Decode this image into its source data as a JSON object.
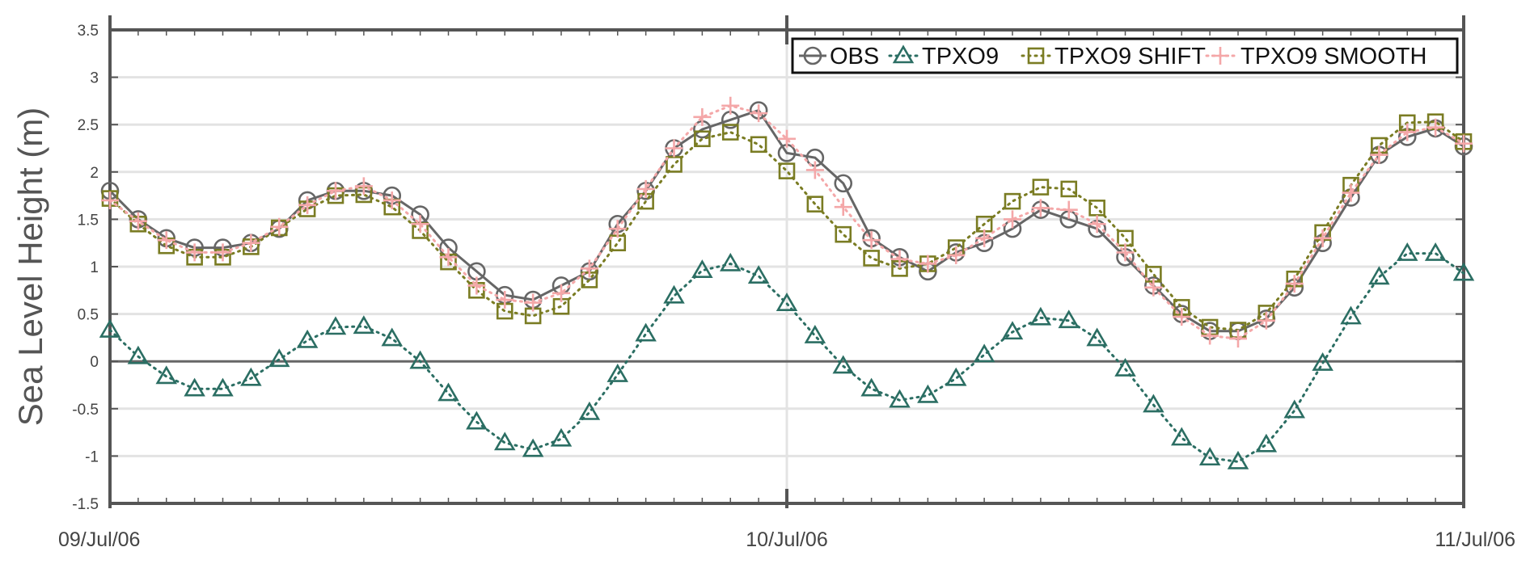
{
  "chart_data": {
    "type": "line",
    "ylabel": "Sea Level Height (m)",
    "xlabel": "",
    "ylim": [
      -1.5,
      3.5
    ],
    "yticks": [
      -1.5,
      -1,
      -0.5,
      0,
      0.5,
      1,
      1.5,
      2,
      2.5,
      3,
      3.5
    ],
    "ytick_labels": [
      "-1.5",
      "-1",
      "-0.5",
      "0",
      "0.5",
      "1",
      "1.5",
      "2",
      "2.5",
      "3",
      "3.5"
    ],
    "xlim": [
      "2006-07-09 00:00",
      "2006-07-11 00:00"
    ],
    "xticks": [
      "2006-07-09 00:00",
      "2006-07-10 00:00",
      "2006-07-11 00:00"
    ],
    "xtick_labels": [
      "09/Jul/06",
      "10/Jul/06",
      "11/Jul/06"
    ],
    "sample_interval_minutes": 60,
    "grid": "horizontal",
    "zero_line": true,
    "legend_position": "top-right",
    "series": [
      {
        "name": "OBS",
        "color": "#666666",
        "marker": "circle",
        "line_style": "solid",
        "values": [
          1.8,
          1.5,
          1.3,
          1.2,
          1.2,
          1.25,
          1.4,
          1.7,
          1.8,
          1.8,
          1.75,
          1.55,
          1.2,
          0.95,
          0.7,
          0.65,
          0.8,
          0.95,
          1.45,
          1.8,
          2.25,
          2.45,
          2.55,
          2.65,
          2.2,
          2.15,
          1.88,
          1.3,
          1.1,
          0.95,
          1.15,
          1.25,
          1.4,
          1.6,
          1.5,
          1.4,
          1.1,
          0.8,
          0.5,
          0.32,
          0.32,
          0.45,
          0.78,
          1.25,
          1.73,
          2.18,
          2.37,
          2.46,
          2.27
        ]
      },
      {
        "name": "TPXO9",
        "color": "#2b6e63",
        "marker": "triangle",
        "line_style": "dotted",
        "values": [
          0.33,
          0.05,
          -0.16,
          -0.29,
          -0.29,
          -0.18,
          0.02,
          0.22,
          0.36,
          0.37,
          0.24,
          0.0,
          -0.34,
          -0.64,
          -0.86,
          -0.93,
          -0.82,
          -0.54,
          -0.14,
          0.29,
          0.69,
          0.96,
          1.03,
          0.9,
          0.61,
          0.27,
          -0.05,
          -0.29,
          -0.41,
          -0.36,
          -0.18,
          0.07,
          0.31,
          0.46,
          0.43,
          0.24,
          -0.08,
          -0.46,
          -0.81,
          -1.02,
          -1.06,
          -0.88,
          -0.52,
          -0.02,
          0.47,
          0.89,
          1.14,
          1.14,
          0.93
        ]
      },
      {
        "name": "TPXO9 SHIFT",
        "color": "#7a7c23",
        "marker": "square",
        "line_style": "dotted",
        "values": [
          1.72,
          1.45,
          1.22,
          1.1,
          1.1,
          1.21,
          1.41,
          1.61,
          1.75,
          1.76,
          1.63,
          1.38,
          1.05,
          0.75,
          0.53,
          0.48,
          0.58,
          0.86,
          1.25,
          1.69,
          2.08,
          2.35,
          2.42,
          2.29,
          2.01,
          1.66,
          1.34,
          1.09,
          0.98,
          1.03,
          1.2,
          1.45,
          1.69,
          1.84,
          1.82,
          1.62,
          1.3,
          0.92,
          0.57,
          0.36,
          0.33,
          0.51,
          0.87,
          1.36,
          1.86,
          2.28,
          2.52,
          2.53,
          2.32
        ]
      },
      {
        "name": "TPXO9 SMOOTH",
        "color": "#f4a7a8",
        "marker": "plus",
        "line_style": "dotted",
        "values": [
          1.7,
          1.48,
          1.28,
          1.15,
          1.15,
          1.25,
          1.42,
          1.65,
          1.8,
          1.85,
          1.7,
          1.45,
          1.1,
          0.8,
          0.65,
          0.62,
          0.72,
          0.98,
          1.4,
          1.82,
          2.25,
          2.58,
          2.7,
          2.62,
          2.35,
          2.02,
          1.63,
          1.28,
          1.08,
          1.03,
          1.12,
          1.3,
          1.5,
          1.62,
          1.6,
          1.45,
          1.15,
          0.78,
          0.47,
          0.27,
          0.24,
          0.43,
          0.82,
          1.3,
          1.78,
          2.18,
          2.42,
          2.47,
          2.3
        ]
      }
    ]
  }
}
